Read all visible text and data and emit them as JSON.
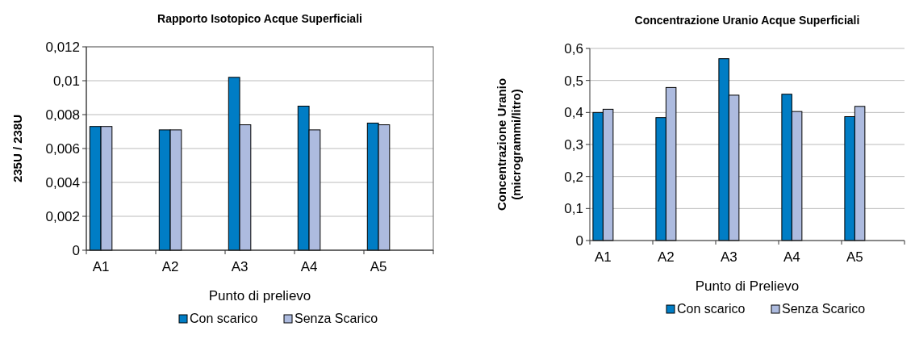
{
  "chart_data": [
    {
      "type": "bar",
      "title": "Rapporto Isotopico Acque Superficiali",
      "xlabel": "Punto di prelievo",
      "ylabel": "235U / 238U",
      "categories": [
        "A1",
        "A2",
        "A3",
        "A4",
        "A5"
      ],
      "series": [
        {
          "name": "Con scarico",
          "color": "#007dc5",
          "values": [
            0.0073,
            0.0071,
            0.0102,
            0.0085,
            0.0075
          ]
        },
        {
          "name": "Senza Scarico",
          "color": "#adbbdf",
          "values": [
            0.0073,
            0.0071,
            0.0074,
            0.0071,
            0.0074
          ]
        }
      ],
      "ylim": [
        0,
        0.012
      ],
      "yticks": [
        0,
        {
          "value": 0.002,
          "label": "0,002"
        },
        {
          "value": 0.004,
          "label": "0,004"
        },
        {
          "value": 0.006,
          "label": "0,006"
        },
        {
          "value": 0.008,
          "label": "0,008"
        },
        {
          "value": 0.01,
          "label": "0,01"
        },
        {
          "value": 0.012,
          "label": "0,012"
        }
      ],
      "grid": "y",
      "legend": "bottom"
    },
    {
      "type": "bar",
      "title": "Concentrazione Uranio Acque Superficiali",
      "xlabel": "Punto di Prelievo",
      "ylabel": "Concentrazione Uranio\n(microgrammi/litro)",
      "categories": [
        "A1",
        "A2",
        "A3",
        "A4",
        "A5"
      ],
      "series": [
        {
          "name": "Con scarico",
          "color": "#007dc5",
          "values": [
            0.4,
            0.384,
            0.568,
            0.457,
            0.387
          ]
        },
        {
          "name": "Senza Scarico",
          "color": "#adbbdf",
          "values": [
            0.41,
            0.478,
            0.454,
            0.403,
            0.419
          ]
        }
      ],
      "ylim": [
        0,
        0.6
      ],
      "yticks": [
        0,
        {
          "value": 0.1,
          "label": "0,1"
        },
        {
          "value": 0.2,
          "label": "0,2"
        },
        {
          "value": 0.3,
          "label": "0,3"
        },
        {
          "value": 0.4,
          "label": "0,4"
        },
        {
          "value": 0.5,
          "label": "0,5"
        },
        {
          "value": 0.6,
          "label": "0,6"
        }
      ],
      "grid": "y",
      "legend": "bottom"
    }
  ]
}
